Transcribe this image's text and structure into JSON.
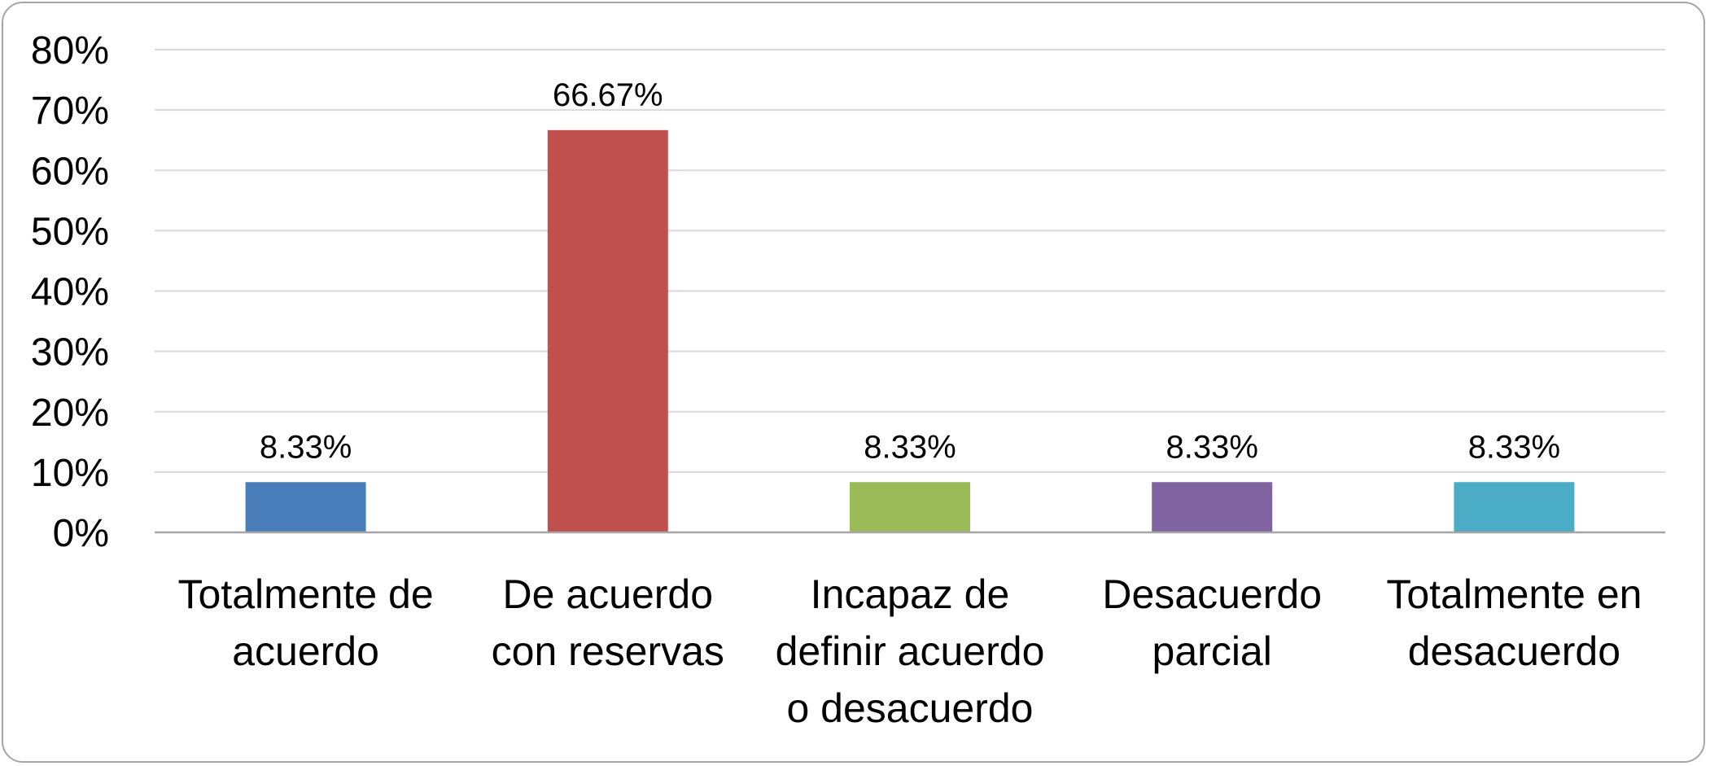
{
  "chart_data": {
    "type": "bar",
    "title": "",
    "xlabel": "",
    "ylabel": "",
    "ylim": [
      0,
      80
    ],
    "yticks": [
      "0%",
      "10%",
      "20%",
      "30%",
      "40%",
      "50%",
      "60%",
      "70%",
      "80%"
    ],
    "grid": true,
    "legend": "none",
    "categories": [
      [
        "Totalmente de",
        "acuerdo"
      ],
      [
        "De acuerdo",
        "con reservas"
      ],
      [
        "Incapaz de",
        "definir acuerdo",
        "o desacuerdo"
      ],
      [
        "Desacuerdo",
        "parcial"
      ],
      [
        "Totalmente en",
        "desacuerdo"
      ]
    ],
    "values": [
      8.33,
      66.67,
      8.33,
      8.33,
      8.33
    ],
    "data_labels": [
      "8.33%",
      "66.67%",
      "8.33%",
      "8.33%",
      "8.33%"
    ],
    "colors": [
      "#4a7ebb",
      "#c0504d",
      "#9bbb59",
      "#8064a2",
      "#4bacc6"
    ],
    "gridline_color": "#d9d9d9",
    "axis_color": "#a6a6a6"
  }
}
